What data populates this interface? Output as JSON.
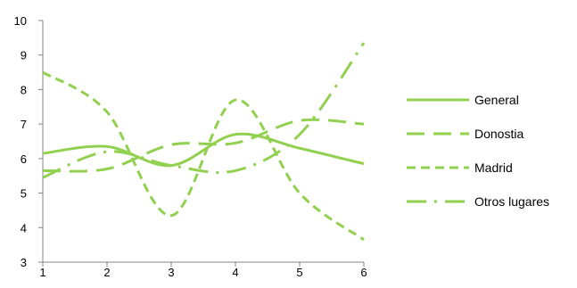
{
  "chart_data": {
    "type": "line",
    "smooth": true,
    "x": [
      1,
      2,
      3,
      4,
      5,
      6
    ],
    "xlim": [
      1,
      6
    ],
    "ylim": [
      3,
      10
    ],
    "yticks": [
      3,
      4,
      5,
      6,
      7,
      8,
      9,
      10
    ],
    "xticks": [
      1,
      2,
      3,
      4,
      5,
      6
    ],
    "grid": false,
    "legend_position": "right",
    "line_color": "#92d050",
    "series": [
      {
        "name": "General",
        "dash": "solid",
        "values": [
          6.15,
          6.35,
          5.8,
          6.7,
          6.3,
          5.85
        ]
      },
      {
        "name": "Donostia",
        "dash": "longdash",
        "values": [
          5.65,
          5.7,
          6.4,
          6.45,
          7.1,
          7.0
        ]
      },
      {
        "name": "Madrid",
        "dash": "dash",
        "values": [
          8.5,
          7.35,
          4.35,
          7.7,
          5.0,
          3.65
        ]
      },
      {
        "name": "Otros lugares",
        "dash": "dashdot",
        "values": [
          5.45,
          6.2,
          5.8,
          5.65,
          6.7,
          9.35
        ]
      }
    ]
  }
}
